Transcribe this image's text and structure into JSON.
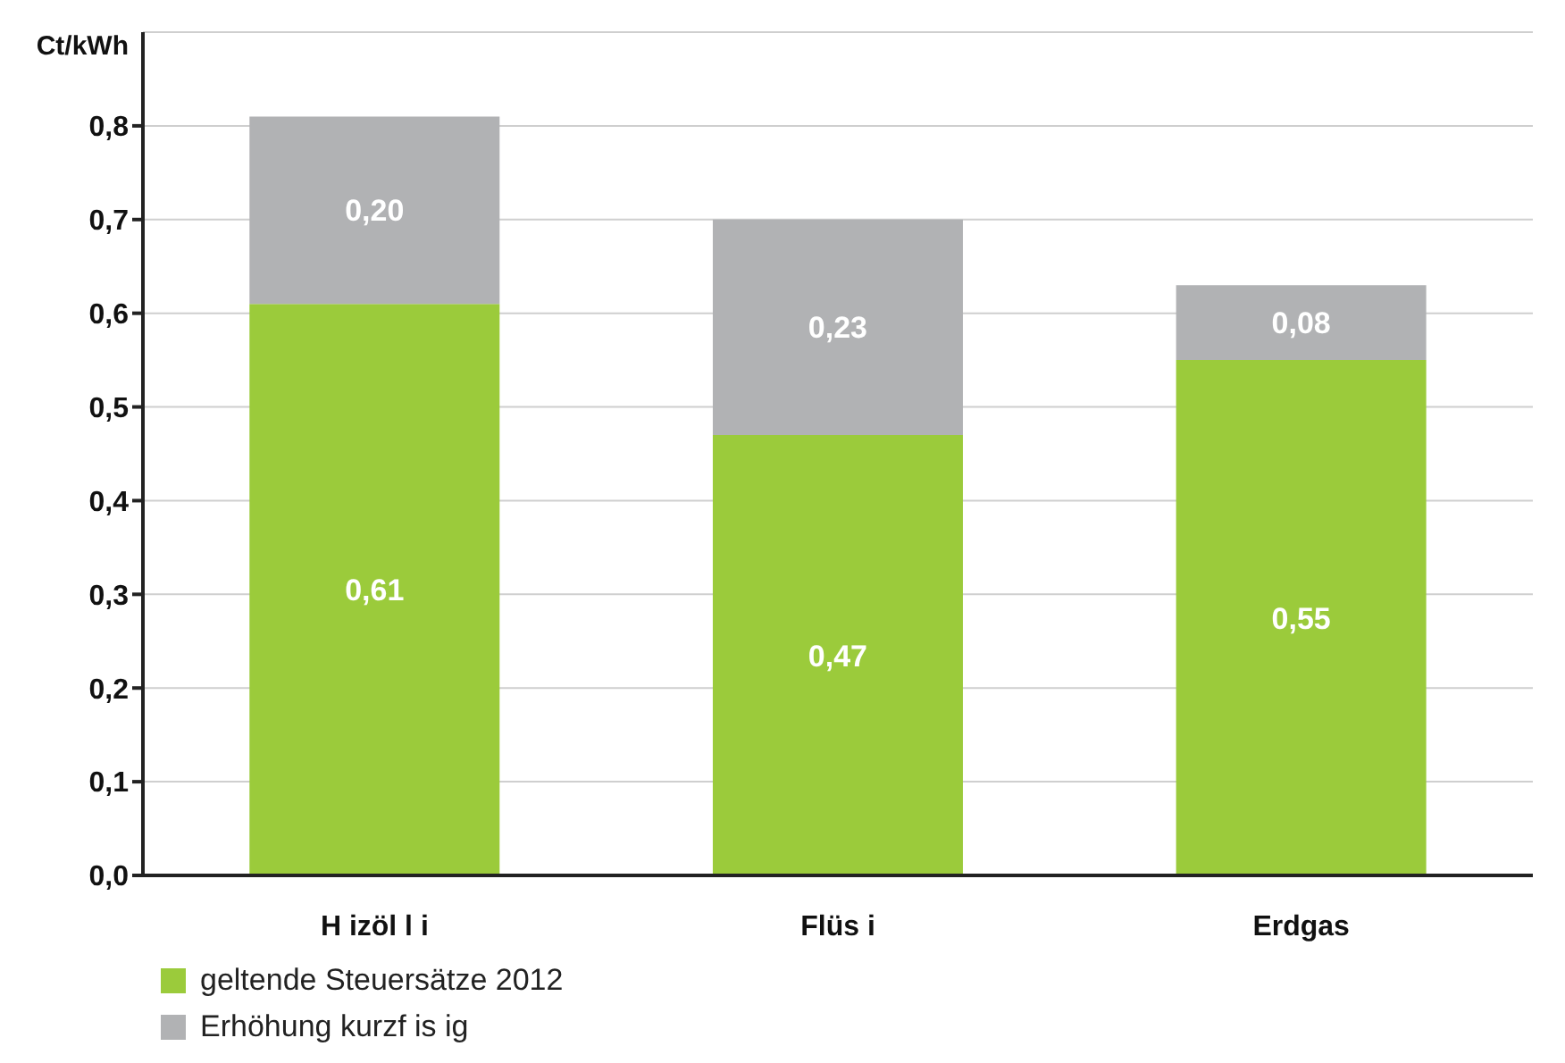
{
  "chart_data": {
    "type": "bar",
    "stacked": true,
    "ylabel": "Ct/kWh",
    "categories": [
      "H izöl l i",
      "Flüs i",
      "Erdgas"
    ],
    "series": [
      {
        "name": "geltende Steuersätze 2012",
        "color": "#9bcb3b",
        "values": [
          0.61,
          0.47,
          0.55
        ],
        "value_labels": [
          "0,61",
          "0,47",
          "0,55"
        ]
      },
      {
        "name": "Erhöhung kurzf is ig",
        "color": "#b1b2b4",
        "values": [
          0.2,
          0.23,
          0.08
        ],
        "value_labels": [
          "0,20",
          "0,23",
          "0,08"
        ]
      }
    ],
    "ylim": [
      0,
      0.9
    ],
    "yticks": [
      {
        "value": 0,
        "label": "0,0"
      },
      {
        "value": 0.1,
        "label": "0,1"
      },
      {
        "value": 0.2,
        "label": "0,2"
      },
      {
        "value": 0.3,
        "label": "0,3"
      },
      {
        "value": 0.4,
        "label": "0,4"
      },
      {
        "value": 0.5,
        "label": "0,5"
      },
      {
        "value": 0.6,
        "label": "0,6"
      },
      {
        "value": 0.7,
        "label": "0,7"
      },
      {
        "value": 0.8,
        "label": "0,8"
      }
    ],
    "grid": "y",
    "legend": "bottom left"
  }
}
